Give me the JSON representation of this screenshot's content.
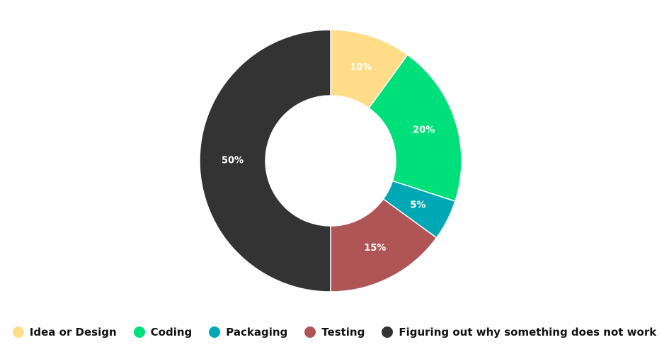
{
  "chart_data": {
    "type": "pie",
    "donut": true,
    "categories": [
      "Idea or Design",
      "Coding",
      "Packaging",
      "Testing",
      "Figuring out why something does not work"
    ],
    "values": [
      10,
      20,
      5,
      15,
      50
    ],
    "labels": [
      "10%",
      "20%",
      "5%",
      "15%",
      "50%"
    ],
    "colors": [
      "#FFDD88",
      "#00E07A",
      "#00A8B5",
      "#B05555",
      "#333333"
    ],
    "legend_position": "bottom"
  }
}
